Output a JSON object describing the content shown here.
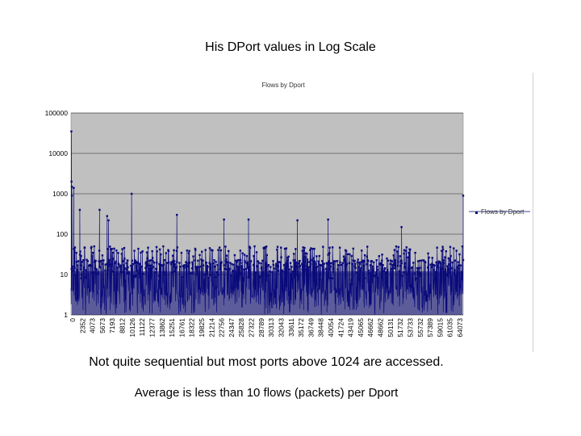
{
  "slide": {
    "title": "His DPort values in Log Scale",
    "note1": "Not quite sequential but most ports above 1024 are accessed.",
    "note2": "Average is less than 10 flows (packets) per Dport"
  },
  "colors": {
    "plot_background": "#c0c0c0",
    "series": "#0a0a7a",
    "gridline": "#000000"
  },
  "chart_data": {
    "type": "line",
    "title": "Flows by Dport",
    "y_scale": "log",
    "ylim": [
      1,
      100000
    ],
    "y_ticks": [
      "1",
      "10",
      "100",
      "1000",
      "10000",
      "100000"
    ],
    "x_tick_labels": [
      "0",
      "2352",
      "4073",
      "5673",
      "7193",
      "8812",
      "10126",
      "11122",
      "12377",
      "13862",
      "15251",
      "16761",
      "18322",
      "19825",
      "21214",
      "22756",
      "24347",
      "25828",
      "27322",
      "28789",
      "30313",
      "32043",
      "33611",
      "35172",
      "36749",
      "38448",
      "40054",
      "41724",
      "43419",
      "45065",
      "46662",
      "48662",
      "50131",
      "51732",
      "53733",
      "55732",
      "57389",
      "59015",
      "61035",
      "64073"
    ],
    "x_range": [
      0,
      64073
    ],
    "legend": {
      "label": "Flows by Dport",
      "position": "right"
    },
    "series": [
      {
        "name": "Flows by Dport",
        "notable_peaks": [
          {
            "port": 53,
            "flows": 35000
          },
          {
            "port": 80,
            "flows": 2000
          },
          {
            "port": 135,
            "flows": 1500
          },
          {
            "port": 139,
            "flows": 900
          },
          {
            "port": 445,
            "flows": 1400
          },
          {
            "port": 1433,
            "flows": 400
          },
          {
            "port": 4662,
            "flows": 400
          },
          {
            "port": 5900,
            "flows": 280
          },
          {
            "port": 6129,
            "flows": 220
          },
          {
            "port": 9898,
            "flows": 1000
          },
          {
            "port": 17300,
            "flows": 300
          },
          {
            "port": 25000,
            "flows": 230
          },
          {
            "port": 29000,
            "flows": 230
          },
          {
            "port": 37000,
            "flows": 220
          },
          {
            "port": 42000,
            "flows": 230
          },
          {
            "port": 54000,
            "flows": 150
          },
          {
            "port": 64073,
            "flows": 900
          }
        ],
        "typical_range": [
          1,
          50
        ]
      }
    ]
  }
}
